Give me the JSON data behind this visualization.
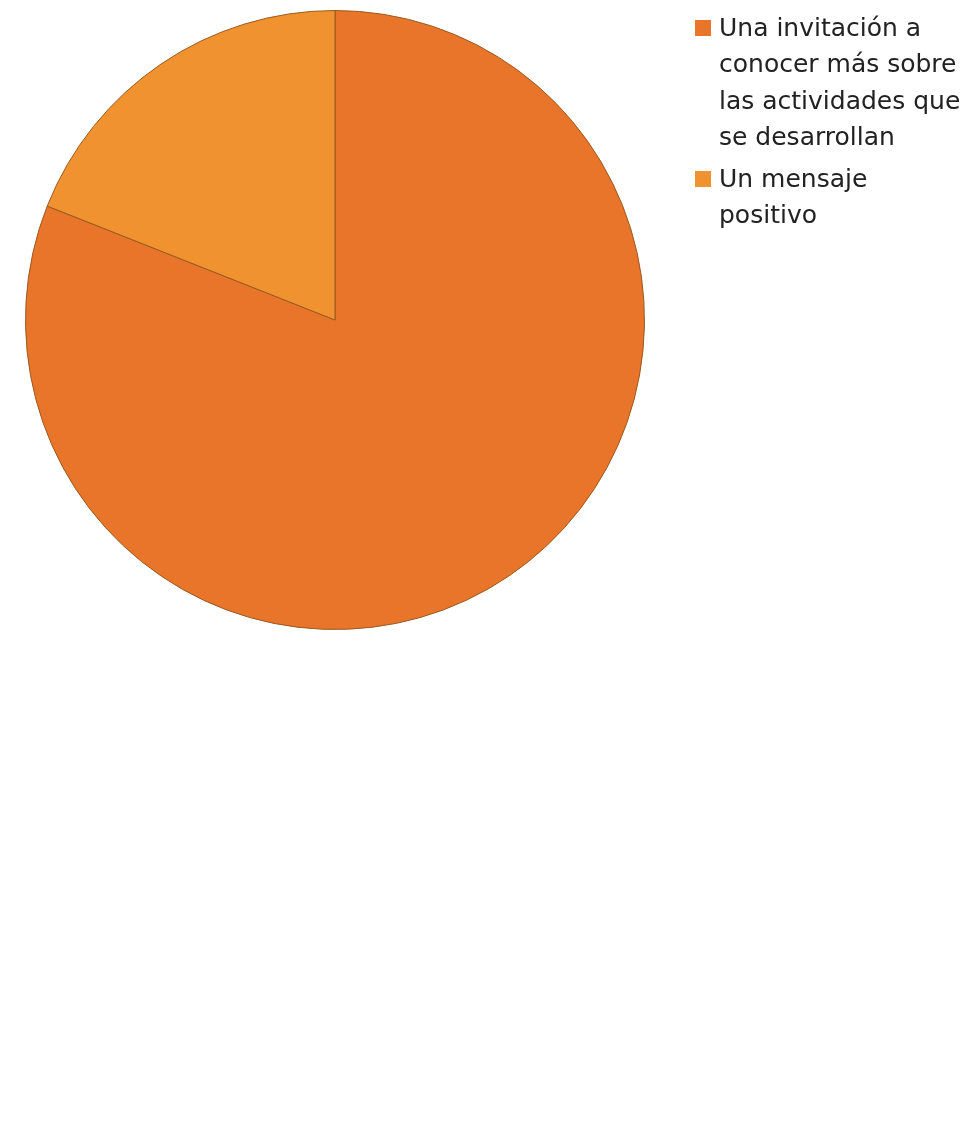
{
  "chart_data": {
    "type": "pie",
    "categories": [
      "Una invitación a conocer más sobre las actividades que se desarrollan",
      "Un mensaje positivo"
    ],
    "values": [
      81,
      19
    ],
    "colors": [
      "#e8752a",
      "#f0922f"
    ],
    "legend": "top right"
  }
}
